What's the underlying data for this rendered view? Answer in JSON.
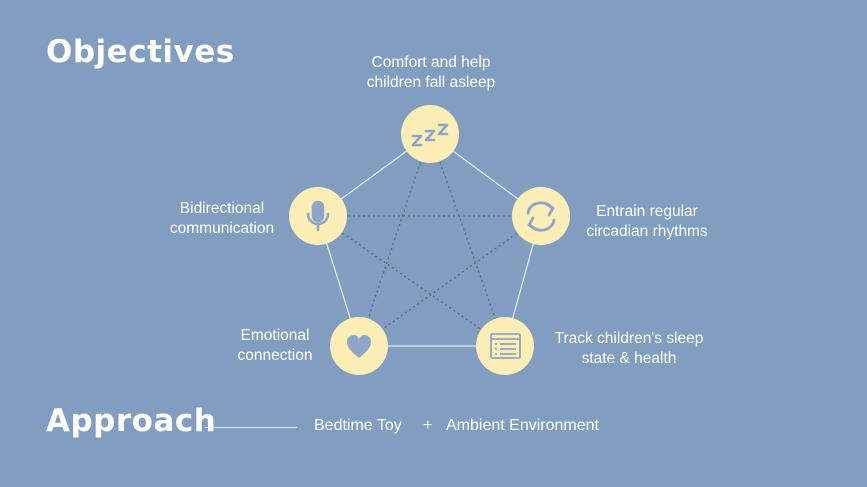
{
  "titles": {
    "objectives": "Objectives",
    "approach": "Approach"
  },
  "colors": {
    "background": "#819dc0",
    "node_fill": "#fdeeb7",
    "icon": "#8ea6c7",
    "edge": "#e6ecf4",
    "dotted": "#55688a"
  },
  "nodes": [
    {
      "id": "sleep",
      "icon": "zzz-icon",
      "lines": [
        "Comfort and help",
        "children fall asleep"
      ]
    },
    {
      "id": "circadian",
      "icon": "refresh-icon",
      "lines": [
        "Entrain regular",
        "circadian rhythms"
      ]
    },
    {
      "id": "track",
      "icon": "list-icon",
      "lines": [
        "Track children's sleep",
        "state & health"
      ]
    },
    {
      "id": "emotional",
      "icon": "heart-icon",
      "lines": [
        "Emotional",
        "connection"
      ]
    },
    {
      "id": "communication",
      "icon": "microphone-icon",
      "lines": [
        "Bidirectional",
        "communication"
      ]
    }
  ],
  "approach": {
    "left": "Bedtime Toy",
    "plus": "+",
    "right": "Ambient Environment"
  }
}
